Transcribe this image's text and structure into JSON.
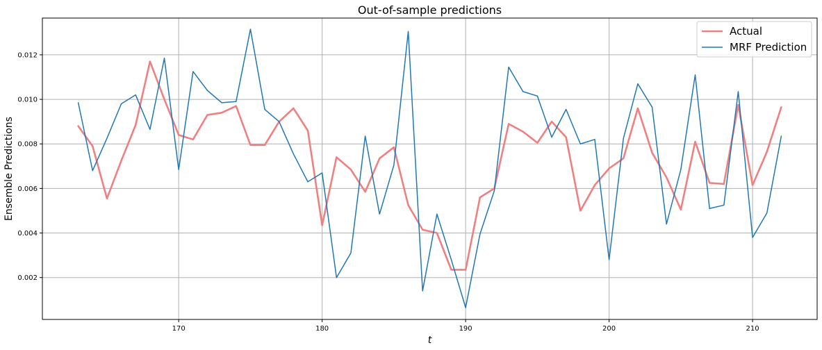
{
  "chart_data": {
    "type": "line",
    "title": "Out-of-sample predictions",
    "xlabel": "t",
    "ylabel": "Ensemble Predictions",
    "xlim": [
      160.5,
      214.5
    ],
    "ylim": [
      0.00012,
      0.01365
    ],
    "x_ticks": [
      170,
      180,
      190,
      200,
      210
    ],
    "x_tick_labels": [
      "170",
      "180",
      "190",
      "200",
      "210"
    ],
    "y_ticks": [
      0.002,
      0.004,
      0.006,
      0.008,
      0.01,
      0.012
    ],
    "y_tick_labels": [
      "0.002",
      "0.004",
      "0.006",
      "0.008",
      "0.010",
      "0.012"
    ],
    "grid": true,
    "legend_position": "top-right",
    "x": [
      163,
      164,
      165,
      166,
      167,
      168,
      169,
      170,
      171,
      172,
      173,
      174,
      175,
      176,
      177,
      178,
      179,
      180,
      181,
      182,
      183,
      184,
      185,
      186,
      187,
      188,
      189,
      190,
      191,
      192,
      193,
      194,
      195,
      196,
      197,
      198,
      199,
      200,
      201,
      202,
      203,
      204,
      205,
      206,
      207,
      208,
      209,
      210,
      211,
      212
    ],
    "series": [
      {
        "name": "Actual",
        "color": "#f08080",
        "values": [
          0.0088,
          0.0079,
          0.00555,
          0.00725,
          0.00885,
          0.0117,
          0.01,
          0.0084,
          0.0082,
          0.0093,
          0.0094,
          0.0097,
          0.00795,
          0.00795,
          0.009,
          0.0096,
          0.0086,
          0.00435,
          0.0074,
          0.00685,
          0.00585,
          0.00735,
          0.00785,
          0.00525,
          0.00415,
          0.004,
          0.00235,
          0.00235,
          0.0056,
          0.006,
          0.0089,
          0.00855,
          0.00805,
          0.009,
          0.0083,
          0.005,
          0.00615,
          0.0069,
          0.00735,
          0.0096,
          0.0076,
          0.0065,
          0.00505,
          0.0081,
          0.00625,
          0.0062,
          0.00975,
          0.00615,
          0.00765,
          0.00965
        ]
      },
      {
        "name": "MRF Prediction",
        "color": "#1f77b4",
        "values": [
          0.00985,
          0.0068,
          0.00825,
          0.0098,
          0.0102,
          0.00865,
          0.01185,
          0.00685,
          0.01125,
          0.0104,
          0.00985,
          0.0099,
          0.01315,
          0.00955,
          0.009,
          0.00755,
          0.0063,
          0.0067,
          0.002,
          0.0031,
          0.00835,
          0.00485,
          0.00705,
          0.01305,
          0.0014,
          0.00485,
          0.0028,
          0.00065,
          0.00395,
          0.0059,
          0.01145,
          0.01035,
          0.01015,
          0.0083,
          0.00955,
          0.008,
          0.0082,
          0.0028,
          0.00825,
          0.0107,
          0.00965,
          0.0044,
          0.00685,
          0.0111,
          0.0051,
          0.00525,
          0.01035,
          0.0038,
          0.0049,
          0.00835
        ]
      }
    ]
  }
}
